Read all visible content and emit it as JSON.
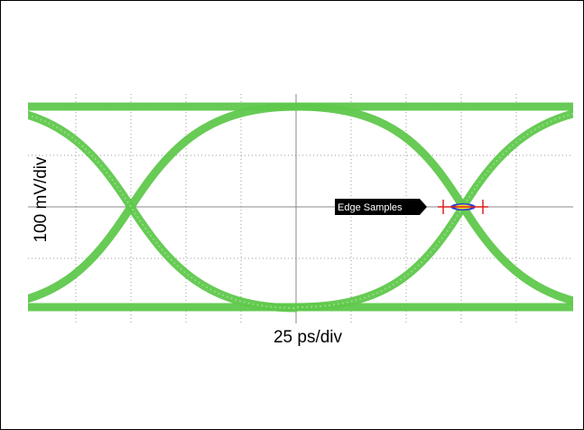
{
  "labels": {
    "y_axis": "100 mV/div",
    "x_axis": "25 ps/div"
  },
  "annotation": "Edge Samples"
}
